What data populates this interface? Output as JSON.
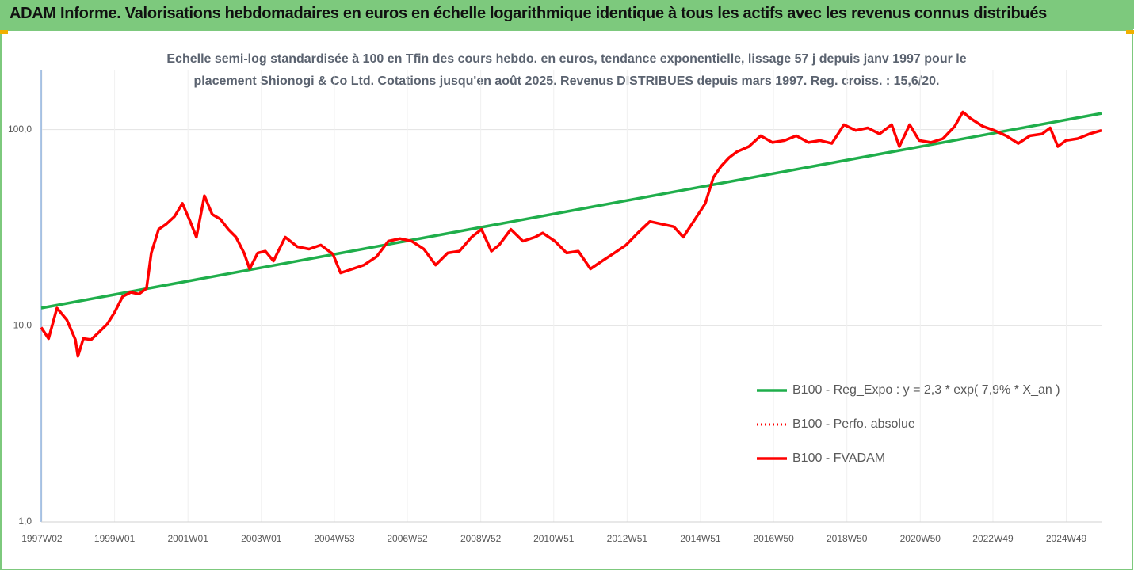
{
  "chart_data": {
    "type": "line",
    "title": "ADAM Informe. Valorisations hebdomadaires en euros en échelle logarithmique identique à tous les actifs avec les revenus connus distribués",
    "subtitle": [
      "Echelle semi-log standardisée à 100 en Tfin des cours hebdo. en euros, tendance exponentielle, lissage 57 j depuis janv 1997 pour le",
      "placement Shionogi & Co Ltd. Cotations jusqu'en août 2025. Revenus DISTRIBUES depuis mars 1997. Reg. croiss. : 15,6/20."
    ],
    "log_scale": true,
    "grid": true,
    "legend": "right",
    "xlim": [
      1997.0,
      2025.9
    ],
    "xticks": [
      {
        "value": 1997.02,
        "label": "1997W02"
      },
      {
        "value": 1999.0,
        "label": "1999W01"
      },
      {
        "value": 2001.0,
        "label": "2001W01"
      },
      {
        "value": 2003.0,
        "label": "2003W01"
      },
      {
        "value": 2004.99,
        "label": "2004W53"
      },
      {
        "value": 2006.98,
        "label": "2006W52"
      },
      {
        "value": 2008.98,
        "label": "2008W52"
      },
      {
        "value": 2010.97,
        "label": "2010W51"
      },
      {
        "value": 2012.97,
        "label": "2012W51"
      },
      {
        "value": 2014.97,
        "label": "2014W51"
      },
      {
        "value": 2016.96,
        "label": "2016W50"
      },
      {
        "value": 2018.96,
        "label": "2018W50"
      },
      {
        "value": 2020.96,
        "label": "2020W50"
      },
      {
        "value": 2022.94,
        "label": "2022W49"
      },
      {
        "value": 2024.94,
        "label": "2024W49"
      }
    ],
    "ylim": [
      1,
      202
    ],
    "yticks": [
      {
        "value": 1,
        "label": "1,0"
      },
      {
        "value": 10,
        "label": "10,0"
      },
      {
        "value": 100,
        "label": "100,0"
      }
    ],
    "series": [
      {
        "name": "B100 - Reg_Expo : y = 2,3 * exp( 7,9% *  X_an )",
        "color": "#1fae4b",
        "dash": "solid",
        "x": [
          1997.0,
          2025.9
        ],
        "values": [
          12.3,
          121
        ]
      },
      {
        "name": "B100 - Perfo. absolue",
        "color": "#ff0000",
        "dash": "dotted",
        "x": [],
        "values": []
      },
      {
        "name": "B100 - FVADAM",
        "color": "#ff0000",
        "dash": "solid",
        "x": [
          1997.0,
          1997.2,
          1997.43,
          1997.7,
          1997.93,
          1998.0,
          1998.15,
          1998.36,
          1998.58,
          1998.8,
          1999.0,
          1999.22,
          1999.44,
          1999.66,
          1999.87,
          2000.0,
          2000.2,
          2000.41,
          2000.63,
          2000.85,
          2001.06,
          2001.23,
          2001.45,
          2001.66,
          2001.88,
          2002.1,
          2002.31,
          2002.53,
          2002.68,
          2002.9,
          2003.11,
          2003.33,
          2003.65,
          2003.98,
          2004.3,
          2004.62,
          2004.95,
          2005.16,
          2005.49,
          2005.8,
          2006.14,
          2006.46,
          2006.78,
          2007.1,
          2007.43,
          2007.75,
          2008.08,
          2008.4,
          2008.73,
          2009.0,
          2009.27,
          2009.48,
          2009.8,
          2010.13,
          2010.46,
          2010.67,
          2011.0,
          2011.32,
          2011.64,
          2011.97,
          2012.29,
          2012.62,
          2012.94,
          2013.26,
          2013.59,
          2013.91,
          2014.24,
          2014.5,
          2014.78,
          2015.1,
          2015.32,
          2015.53,
          2015.75,
          2015.96,
          2016.29,
          2016.61,
          2016.93,
          2017.26,
          2017.58,
          2017.91,
          2018.23,
          2018.55,
          2018.88,
          2019.2,
          2019.53,
          2019.85,
          2020.18,
          2020.39,
          2020.67,
          2020.93,
          2021.25,
          2021.58,
          2021.9,
          2022.12,
          2022.33,
          2022.66,
          2022.98,
          2023.3,
          2023.63,
          2023.95,
          2024.28,
          2024.5,
          2024.71,
          2024.93,
          2025.25,
          2025.57,
          2025.9
        ],
        "values": [
          9.8,
          8.6,
          12.3,
          10.7,
          8.5,
          7.0,
          8.6,
          8.5,
          9.3,
          10.2,
          11.7,
          14.1,
          14.8,
          14.5,
          15.5,
          23.5,
          31,
          33,
          36,
          42,
          34,
          28.3,
          46,
          37,
          35,
          31,
          28.3,
          23.5,
          19.5,
          23.5,
          24,
          21.4,
          28.3,
          25.3,
          24.6,
          25.8,
          23.2,
          18.6,
          19.5,
          20.4,
          22.5,
          27,
          27.8,
          27,
          24.6,
          20.4,
          23.5,
          24,
          28.3,
          31,
          24,
          25.8,
          31,
          27,
          28.3,
          29.7,
          27,
          23.5,
          24,
          19.5,
          21.4,
          23.5,
          25.8,
          29.7,
          34,
          33,
          32,
          28.3,
          34,
          42,
          57,
          65,
          72,
          77,
          82,
          93,
          86,
          88,
          93,
          86,
          88,
          85,
          106,
          99,
          102,
          95,
          106,
          82,
          106,
          88,
          86,
          90,
          104,
          123,
          114,
          104,
          99,
          93,
          85,
          93,
          95,
          102,
          82,
          88,
          90,
          95,
          99
        ]
      }
    ]
  }
}
